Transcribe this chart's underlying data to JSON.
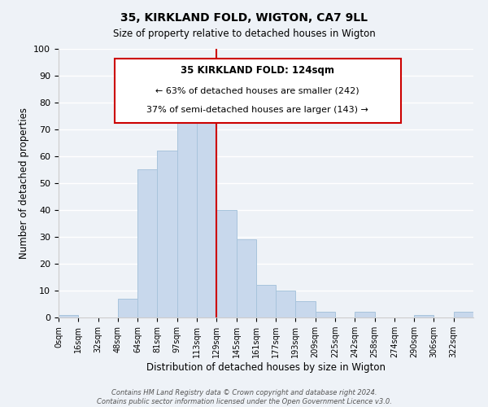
{
  "title": "35, KIRKLAND FOLD, WIGTON, CA7 9LL",
  "subtitle": "Size of property relative to detached houses in Wigton",
  "xlabel": "Distribution of detached houses by size in Wigton",
  "ylabel": "Number of detached properties",
  "bar_color": "#c8d8ec",
  "bar_edge_color": "#a8c4dc",
  "categories": [
    "0sqm",
    "16sqm",
    "32sqm",
    "48sqm",
    "64sqm",
    "81sqm",
    "97sqm",
    "113sqm",
    "129sqm",
    "145sqm",
    "161sqm",
    "177sqm",
    "193sqm",
    "209sqm",
    "225sqm",
    "242sqm",
    "258sqm",
    "274sqm",
    "290sqm",
    "306sqm",
    "322sqm"
  ],
  "values": [
    1,
    0,
    0,
    7,
    55,
    62,
    76,
    81,
    40,
    29,
    12,
    10,
    6,
    2,
    0,
    2,
    0,
    0,
    1,
    0,
    2
  ],
  "ylim": [
    0,
    100
  ],
  "yticks": [
    0,
    10,
    20,
    30,
    40,
    50,
    60,
    70,
    80,
    90,
    100
  ],
  "vline_color": "#cc0000",
  "annotation_title": "35 KIRKLAND FOLD: 124sqm",
  "annotation_line1": "← 63% of detached houses are smaller (242)",
  "annotation_line2": "37% of semi-detached houses are larger (143) →",
  "annotation_box_color": "#ffffff",
  "annotation_box_edge": "#cc0000",
  "footer1": "Contains HM Land Registry data © Crown copyright and database right 2024.",
  "footer2": "Contains public sector information licensed under the Open Government Licence v3.0.",
  "background_color": "#eef2f7",
  "plot_background": "#eef2f7"
}
